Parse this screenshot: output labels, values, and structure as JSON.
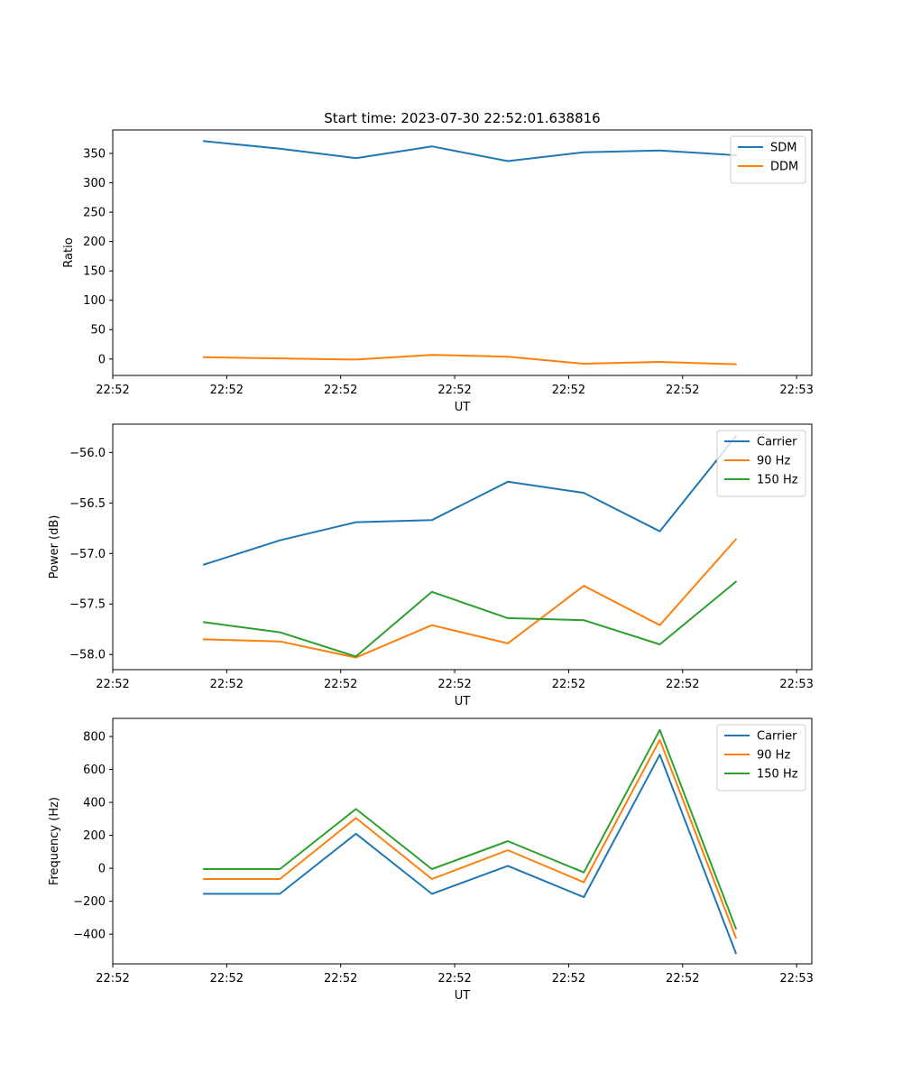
{
  "figure_title": "Start time: 2023-07-30 22:52:01.638816",
  "colors": {
    "blue": "#1f77b4",
    "orange": "#ff7f0e",
    "green": "#2ca02c"
  },
  "chart_data": [
    {
      "type": "line",
      "title": "Start time: 2023-07-30 22:52:01.638816",
      "xlabel": "UT",
      "ylabel": "Ratio",
      "x_tick_labels": [
        "22:52",
        "22:52",
        "22:52",
        "22:52",
        "22:52",
        "22:52",
        "22:53"
      ],
      "y_ticks": [
        0,
        50,
        100,
        150,
        200,
        250,
        300,
        350
      ],
      "y_tick_labels": [
        "0",
        "50",
        "100",
        "150",
        "200",
        "250",
        "300",
        "350"
      ],
      "ylim": [
        -28,
        390
      ],
      "legend_position": "top-right",
      "x": [
        1,
        2,
        3,
        4,
        5,
        6,
        7,
        8
      ],
      "xlim": [
        -0.2,
        9.0
      ],
      "series": [
        {
          "name": "SDM",
          "color": "#1f77b4",
          "values": [
            371,
            358,
            342,
            362,
            337,
            352,
            355,
            347
          ]
        },
        {
          "name": "DDM",
          "color": "#ff7f0e",
          "values": [
            3,
            1,
            -1,
            7,
            4,
            -8,
            -5,
            -9
          ]
        }
      ]
    },
    {
      "type": "line",
      "title": "",
      "xlabel": "UT",
      "ylabel": "Power (dB)",
      "x_tick_labels": [
        "22:52",
        "22:52",
        "22:52",
        "22:52",
        "22:52",
        "22:52",
        "22:53"
      ],
      "y_ticks": [
        -58.0,
        -57.5,
        -57.0,
        -56.5,
        -56.0
      ],
      "y_tick_labels": [
        "−58.0",
        "−57.5",
        "−57.0",
        "−56.5",
        "−56.0"
      ],
      "ylim": [
        -58.15,
        -55.72
      ],
      "legend_position": "top-right",
      "x": [
        1,
        2,
        3,
        4,
        5,
        6,
        7,
        8
      ],
      "xlim": [
        -0.2,
        9.0
      ],
      "series": [
        {
          "name": "Carrier",
          "color": "#1f77b4",
          "values": [
            -57.11,
            -56.87,
            -56.69,
            -56.67,
            -56.29,
            -56.4,
            -56.78,
            -55.84
          ]
        },
        {
          "name": "90 Hz",
          "color": "#ff7f0e",
          "values": [
            -57.85,
            -57.87,
            -58.03,
            -57.71,
            -57.89,
            -57.32,
            -57.71,
            -56.86
          ]
        },
        {
          "name": "150 Hz",
          "color": "#2ca02c",
          "values": [
            -57.68,
            -57.78,
            -58.02,
            -57.38,
            -57.64,
            -57.66,
            -57.9,
            -57.28
          ]
        }
      ]
    },
    {
      "type": "line",
      "title": "",
      "xlabel": "UT",
      "ylabel": "Frequency (Hz)",
      "x_tick_labels": [
        "22:52",
        "22:52",
        "22:52",
        "22:52",
        "22:52",
        "22:52",
        "22:53"
      ],
      "y_ticks": [
        -400,
        -200,
        0,
        200,
        400,
        600,
        800
      ],
      "y_tick_labels": [
        "−400",
        "−200",
        "0",
        "200",
        "400",
        "600",
        "800"
      ],
      "ylim": [
        -580,
        910
      ],
      "legend_position": "top-right",
      "x": [
        1,
        2,
        3,
        4,
        5,
        6,
        7,
        8
      ],
      "xlim": [
        -0.2,
        9.0
      ],
      "series": [
        {
          "name": "Carrier",
          "color": "#1f77b4",
          "values": [
            -155,
            -155,
            210,
            -155,
            15,
            -175,
            690,
            -515
          ]
        },
        {
          "name": "90 Hz",
          "color": "#ff7f0e",
          "values": [
            -65,
            -65,
            305,
            -65,
            110,
            -85,
            780,
            -420
          ]
        },
        {
          "name": "150 Hz",
          "color": "#2ca02c",
          "values": [
            -5,
            -5,
            360,
            -5,
            165,
            -25,
            840,
            -365
          ]
        }
      ]
    }
  ]
}
